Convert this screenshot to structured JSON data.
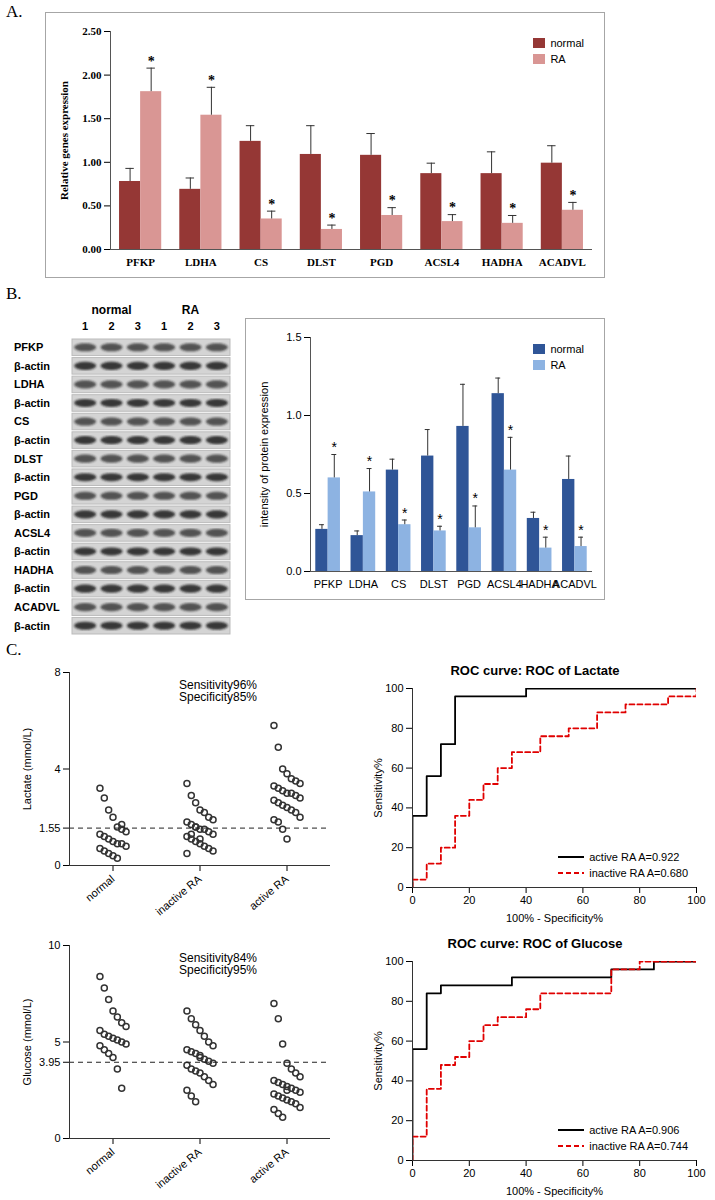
{
  "chart_data": [
    {
      "type": "bar",
      "panel": "A.",
      "ylabel": "Relative genes expression",
      "categories": [
        "PFKP",
        "LDHA",
        "CS",
        "DLST",
        "PGD",
        "ACSL4",
        "HADHA",
        "ACADVL"
      ],
      "ylim": [
        0,
        2.5
      ],
      "yticks": [
        {
          "value": 0,
          "label": "0.00"
        },
        {
          "value": 0.5,
          "label": "0.50"
        },
        {
          "value": 1,
          "label": "1.00"
        },
        {
          "value": 1.5,
          "label": "1.50"
        },
        {
          "value": 2,
          "label": "2.00"
        },
        {
          "value": 2.5,
          "label": "2.50"
        }
      ],
      "legend": "upper right",
      "series": [
        {
          "name": "normal",
          "color": "#953735",
          "values": [
            0.78,
            0.69,
            1.24,
            1.09,
            1.08,
            0.87,
            0.87,
            0.99
          ],
          "errors": [
            0.15,
            0.13,
            0.18,
            0.33,
            0.25,
            0.12,
            0.25,
            0.2
          ]
        },
        {
          "name": "RA",
          "color": "#d99694",
          "values": [
            1.81,
            1.54,
            0.35,
            0.23,
            0.39,
            0.32,
            0.3,
            0.45
          ],
          "errors": [
            0.27,
            0.32,
            0.09,
            0.05,
            0.09,
            0.08,
            0.09,
            0.09
          ],
          "annotations": [
            "*",
            "*",
            "*",
            "*",
            "*",
            "*",
            "*",
            "*"
          ]
        }
      ]
    },
    {
      "type": "blot",
      "panel": "B.",
      "groups": [
        "normal",
        "RA"
      ],
      "lanes": [
        "1",
        "2",
        "3",
        "1",
        "2",
        "3"
      ],
      "rows": [
        "PFKP",
        "β-actin",
        "LDHA",
        "β-actin",
        "CS",
        "β-actin",
        "DLST",
        "β-actin",
        "PGD",
        "β-actin",
        "ACSL4",
        "β-actin",
        "HADHA",
        "β-actin",
        "ACADVL",
        "β-actin"
      ]
    },
    {
      "type": "bar",
      "ylabel": "intensity of protein expression",
      "categories": [
        "PFKP",
        "LDHA",
        "CS",
        "DLST",
        "PGD",
        "ACSL4",
        "HADHA",
        "ACADVL"
      ],
      "ylim": [
        0,
        1.5
      ],
      "yticks": [
        {
          "value": 0,
          "label": "0.0"
        },
        {
          "value": 0.5,
          "label": "0.5"
        },
        {
          "value": 1,
          "label": "1.0"
        },
        {
          "value": 1.5,
          "label": "1.5"
        }
      ],
      "legend": "upper right",
      "series": [
        {
          "name": "normal",
          "color": "#2f5597",
          "values": [
            0.27,
            0.23,
            0.65,
            0.74,
            0.93,
            1.14,
            0.34,
            0.59
          ],
          "errors": [
            0.03,
            0.03,
            0.07,
            0.17,
            0.27,
            0.1,
            0.04,
            0.15
          ]
        },
        {
          "name": "RA",
          "color": "#8db3e2",
          "values": [
            0.6,
            0.51,
            0.3,
            0.26,
            0.28,
            0.65,
            0.15,
            0.16
          ],
          "errors": [
            0.15,
            0.15,
            0.03,
            0.03,
            0.14,
            0.21,
            0.07,
            0.06
          ],
          "annotations": [
            "*",
            "*",
            "*",
            "*",
            "*",
            "*",
            "*",
            "*"
          ]
        }
      ]
    },
    {
      "type": "scatter",
      "panel": "C.",
      "ylabel": "Lactate (mmol/L)",
      "marker": "circle",
      "categories": [
        "normal",
        "inactive RA",
        "active RA"
      ],
      "values": [
        [
          3.2,
          2.8,
          2.3,
          2.0,
          1.6,
          1.5,
          1.4,
          1.3,
          1.2,
          1.1,
          1.0,
          0.9,
          0.9,
          0.8,
          0.7,
          0.6,
          0.5,
          0.4,
          0.3,
          1.7
        ],
        [
          3.4,
          2.9,
          2.6,
          2.3,
          2.2,
          2.0,
          1.9,
          1.8,
          1.7,
          1.6,
          1.5,
          1.5,
          1.4,
          1.3,
          1.2,
          1.1,
          1.0,
          0.9,
          0.8,
          0.7,
          0.6,
          0.5,
          1.3,
          1.6,
          1.1
        ],
        [
          5.8,
          4.9,
          4.0,
          3.8,
          3.6,
          3.5,
          3.4,
          3.3,
          3.2,
          3.1,
          3.0,
          3.0,
          2.9,
          2.8,
          2.7,
          2.6,
          2.5,
          2.4,
          2.3,
          2.2,
          2.0,
          1.9,
          1.8,
          1.5,
          1.1
        ]
      ],
      "threshold": 1.55,
      "annotations": [
        "Sensitivity96%",
        "Specificity85%"
      ],
      "ylim": [
        0,
        8
      ],
      "yticks": [
        0,
        1.55,
        4,
        8
      ]
    },
    {
      "type": "line",
      "title": "ROC curve: ROC of Lactate",
      "xlabel": "100% - Specificity%",
      "ylabel": "Sensitivity%",
      "xlim": [
        0,
        100
      ],
      "xticks": [
        0,
        20,
        40,
        60,
        80,
        100
      ],
      "ylim": [
        0,
        100
      ],
      "yticks": [
        0,
        20,
        40,
        60,
        80,
        100
      ],
      "legend": "lower right",
      "series": [
        {
          "name": "active RA A=0.922",
          "color": "#000000",
          "line_style": "solid",
          "x": [
            0,
            0,
            5,
            5,
            10,
            10,
            15,
            15,
            40,
            40,
            100
          ],
          "values": [
            0,
            36,
            36,
            56,
            56,
            72,
            72,
            96,
            96,
            100,
            100
          ]
        },
        {
          "name": "inactive RA A=0.680",
          "color": "#e00000",
          "line_style": "dashed",
          "x": [
            0,
            0,
            5,
            5,
            10,
            10,
            15,
            15,
            20,
            20,
            25,
            25,
            30,
            30,
            35,
            35,
            45,
            45,
            55,
            55,
            65,
            65,
            75,
            75,
            90,
            90,
            100,
            100
          ],
          "values": [
            0,
            4,
            4,
            12,
            12,
            20,
            20,
            36,
            36,
            44,
            44,
            52,
            52,
            60,
            60,
            68,
            68,
            76,
            76,
            80,
            80,
            88,
            88,
            92,
            92,
            96,
            96,
            100
          ]
        }
      ]
    },
    {
      "type": "scatter",
      "ylabel": "Glucose (mmol/L)",
      "marker": "circle",
      "categories": [
        "normal",
        "inactive RA",
        "active RA"
      ],
      "values": [
        [
          8.4,
          7.8,
          7.2,
          6.6,
          6.3,
          6.0,
          5.8,
          5.6,
          5.4,
          5.3,
          5.2,
          5.1,
          5.0,
          4.9,
          4.8,
          4.6,
          4.4,
          4.2,
          3.6,
          2.6
        ],
        [
          6.6,
          6.2,
          5.9,
          5.6,
          5.3,
          5.0,
          4.8,
          4.6,
          4.5,
          4.4,
          4.3,
          4.1,
          4.0,
          3.9,
          3.8,
          3.6,
          3.5,
          3.4,
          3.2,
          3.0,
          2.8,
          2.5,
          2.2,
          1.9,
          4.2
        ],
        [
          7.0,
          6.2,
          4.9,
          3.9,
          3.6,
          3.4,
          3.2,
          3.0,
          2.9,
          2.8,
          2.7,
          2.6,
          2.5,
          2.4,
          2.3,
          2.2,
          2.1,
          2.0,
          1.9,
          1.8,
          1.6,
          1.5,
          1.3,
          1.1,
          2.5
        ]
      ],
      "threshold": 3.95,
      "annotations": [
        "Sensitivity84%",
        "Specificity95%"
      ],
      "ylim": [
        0,
        10
      ],
      "yticks": [
        0,
        3.95,
        5,
        10
      ]
    },
    {
      "type": "line",
      "title": "ROC curve: ROC of Glucose",
      "xlabel": "100% - Specificity%",
      "ylabel": "Sensitivity%",
      "xlim": [
        0,
        100
      ],
      "xticks": [
        0,
        20,
        40,
        60,
        80,
        100
      ],
      "ylim": [
        0,
        100
      ],
      "yticks": [
        0,
        20,
        40,
        60,
        80,
        100
      ],
      "legend": "lower right",
      "series": [
        {
          "name": "active RA A=0.906",
          "color": "#000000",
          "line_style": "solid",
          "x": [
            0,
            0,
            5,
            5,
            10,
            10,
            35,
            35,
            70,
            70,
            85,
            85,
            100
          ],
          "values": [
            0,
            56,
            56,
            84,
            84,
            88,
            88,
            92,
            92,
            96,
            96,
            100,
            100
          ]
        },
        {
          "name": "inactive RA A=0.744",
          "color": "#e00000",
          "line_style": "dashed",
          "x": [
            0,
            0,
            5,
            5,
            10,
            10,
            15,
            15,
            20,
            20,
            25,
            25,
            30,
            30,
            40,
            40,
            45,
            45,
            70,
            70,
            80,
            80,
            100
          ],
          "values": [
            0,
            12,
            12,
            36,
            36,
            48,
            48,
            52,
            52,
            60,
            60,
            68,
            68,
            72,
            72,
            76,
            76,
            84,
            84,
            96,
            96,
            100,
            100
          ]
        }
      ]
    }
  ]
}
